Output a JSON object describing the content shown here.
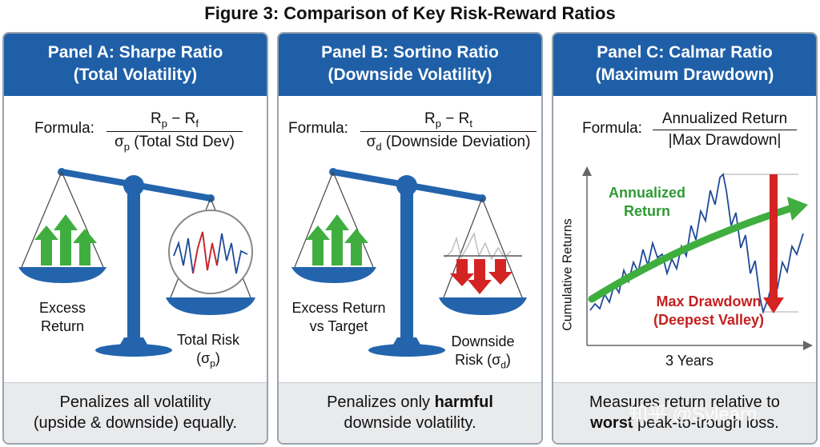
{
  "figure_title": "Figure 3: Comparison of Key Risk-Reward Ratios",
  "panels": {
    "a": {
      "title_line1": "Panel A: Sharpe Ratio",
      "title_line2": "(Total Volatility)",
      "formula_label": "Formula:",
      "num_main": "R",
      "num_sub1": "p",
      "num_mid": " − R",
      "num_sub2": "f",
      "den_main": "σ",
      "den_sub": "p",
      "den_rest": " (Total Std Dev)",
      "left_label_1": "Excess",
      "left_label_2": "Return",
      "right_label_1": "Total Risk",
      "right_label_2_main": "(σ",
      "right_label_2_sub": "p",
      "right_label_2_end": ")",
      "foot_line1": "Penalizes all volatility",
      "foot_line2": "(upside & downside) equally."
    },
    "b": {
      "title_line1": "Panel B: Sortino Ratio",
      "title_line2": "(Downside Volatility)",
      "formula_label": "Formula:",
      "num_main": "R",
      "num_sub1": "p",
      "num_mid": " − R",
      "num_sub2": "t",
      "den_main": "σ",
      "den_sub": "d",
      "den_rest": " (Downside Deviation)",
      "left_label_1": "Excess Return",
      "left_label_2": "vs Target",
      "right_label_1": "Downside",
      "right_label_2_main": "Risk (σ",
      "right_label_2_sub": "d",
      "right_label_2_end": ")",
      "foot_line1": "Penalizes only ",
      "foot_line1_bold": "harmful",
      "foot_line2": "downside volatility."
    },
    "c": {
      "title_line1": "Panel C: Calmar Ratio",
      "title_line2": "(Maximum Drawdown)",
      "formula_label": "Formula:",
      "numerator": "Annualized Return",
      "denominator": "|Max Drawdown|",
      "ylabel": "Cumulative Returns",
      "xlabel": "3 Years",
      "trend_label_1": "Annualized",
      "trend_label_2": "Return",
      "dd_label_1": "Max Drawdown",
      "dd_label_2": "(Deepest Valley)",
      "foot_line1": "Measures return relative to",
      "foot_line2_bold": "worst",
      "foot_line2": " peak-to-trough loss."
    }
  },
  "watermark": "知乎 @Sylearn",
  "colors": {
    "header_blue": "#1f5fa8",
    "scale_blue": "#2364ad",
    "up_green": "#3fae3f",
    "down_red": "#d42323",
    "footer_gray": "#e9eaec"
  }
}
